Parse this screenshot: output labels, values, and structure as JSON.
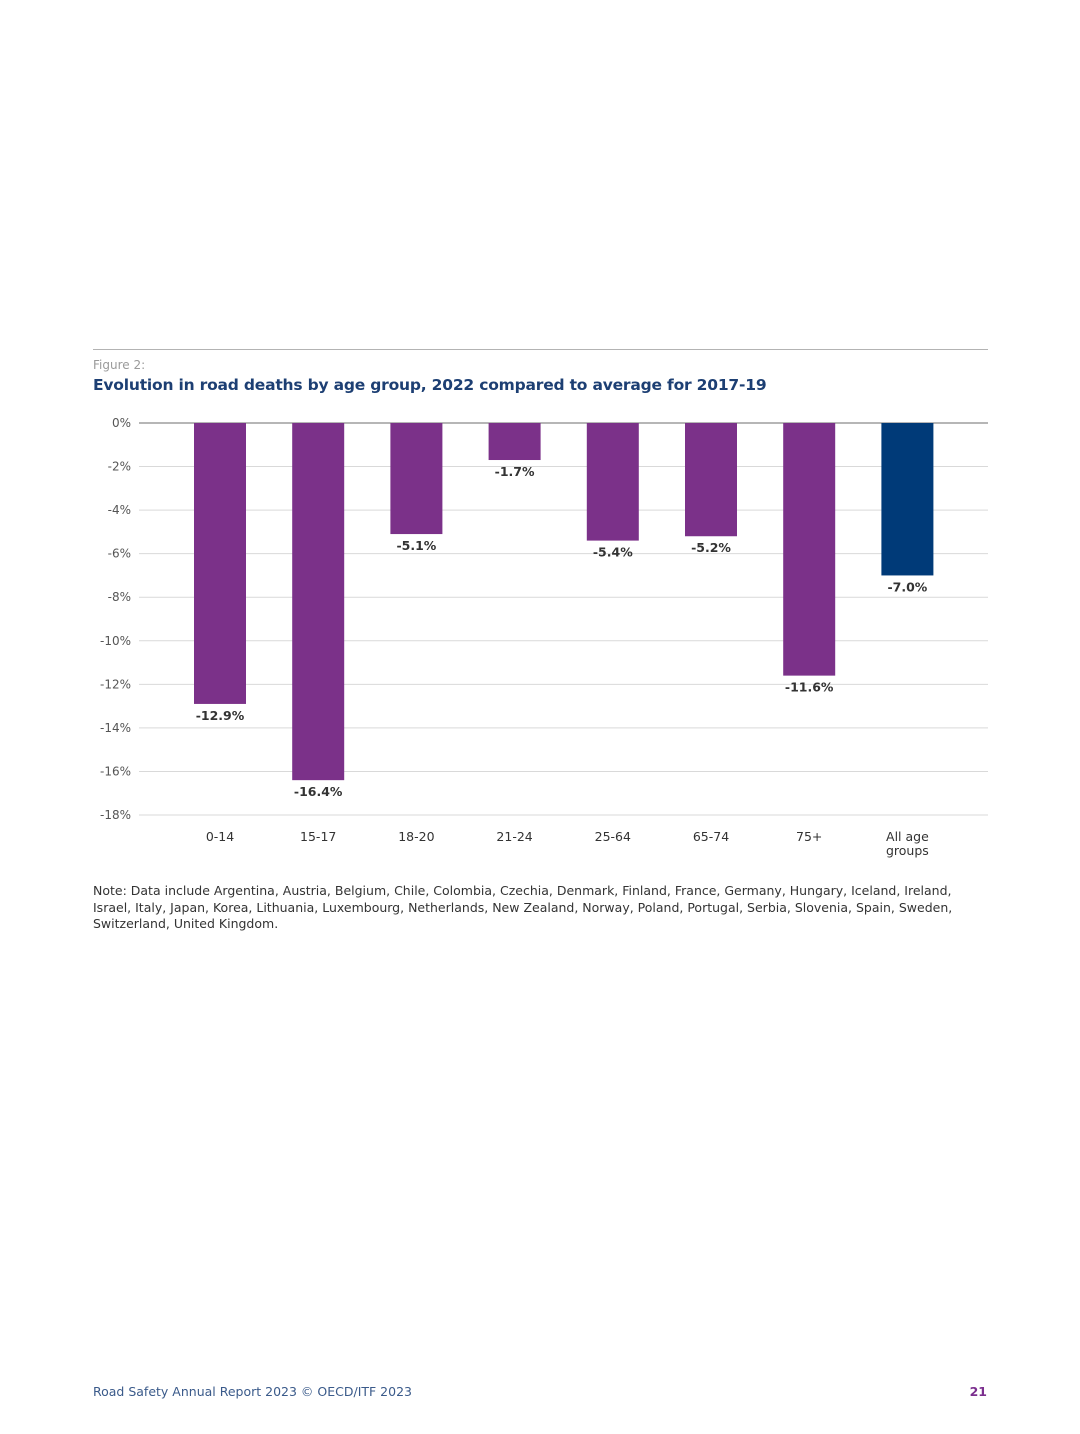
{
  "figure": {
    "label": "Figure 2:",
    "title": "Evolution in road deaths by age group, 2022 compared to average for 2017-19"
  },
  "chart_data": {
    "type": "bar",
    "title": "Evolution in road deaths by age group, 2022 compared to average for 2017-19",
    "xlabel": "",
    "ylabel": "",
    "ylim": [
      -18,
      0
    ],
    "yticks": [
      "0%",
      "-2%",
      "-4%",
      "-6%",
      "-8%",
      "-10%",
      "-12%",
      "-14%",
      "-16%",
      "-18%"
    ],
    "categories": [
      [
        "0-14"
      ],
      [
        "15-17"
      ],
      [
        "18-20"
      ],
      [
        "21-24"
      ],
      [
        "25-64"
      ],
      [
        "65-74"
      ],
      [
        "75+"
      ],
      [
        "All age",
        "groups"
      ]
    ],
    "values": [
      -12.9,
      -16.4,
      -5.1,
      -1.7,
      -5.4,
      -5.2,
      -11.6,
      -7.0
    ],
    "value_labels": [
      "-12.9%",
      "-16.4%",
      "-5.1%",
      "-1.7%",
      "-5.4%",
      "-5.2%",
      "-11.6%",
      "-7.0%"
    ],
    "colors": [
      "#7b3189",
      "#7b3189",
      "#7b3189",
      "#7b3189",
      "#7b3189",
      "#7b3189",
      "#7b3189",
      "#003a78"
    ],
    "grid": true,
    "legend": "none"
  },
  "note": "Note: Data include Argentina, Austria, Belgium, Chile, Colombia, Czechia, Denmark, Finland, France, Germany, Hungary, Iceland, Ireland, Israel, Italy, Japan, Korea, Lithuania, Luxembourg, Netherlands, New Zealand, Norway, Poland, Portugal, Serbia, Slovenia, Spain, Sweden, Switzerland, United Kingdom.",
  "footer": {
    "left": "Road Safety Annual Report 2023 © OECD/ITF 2023",
    "page_number": "21"
  }
}
